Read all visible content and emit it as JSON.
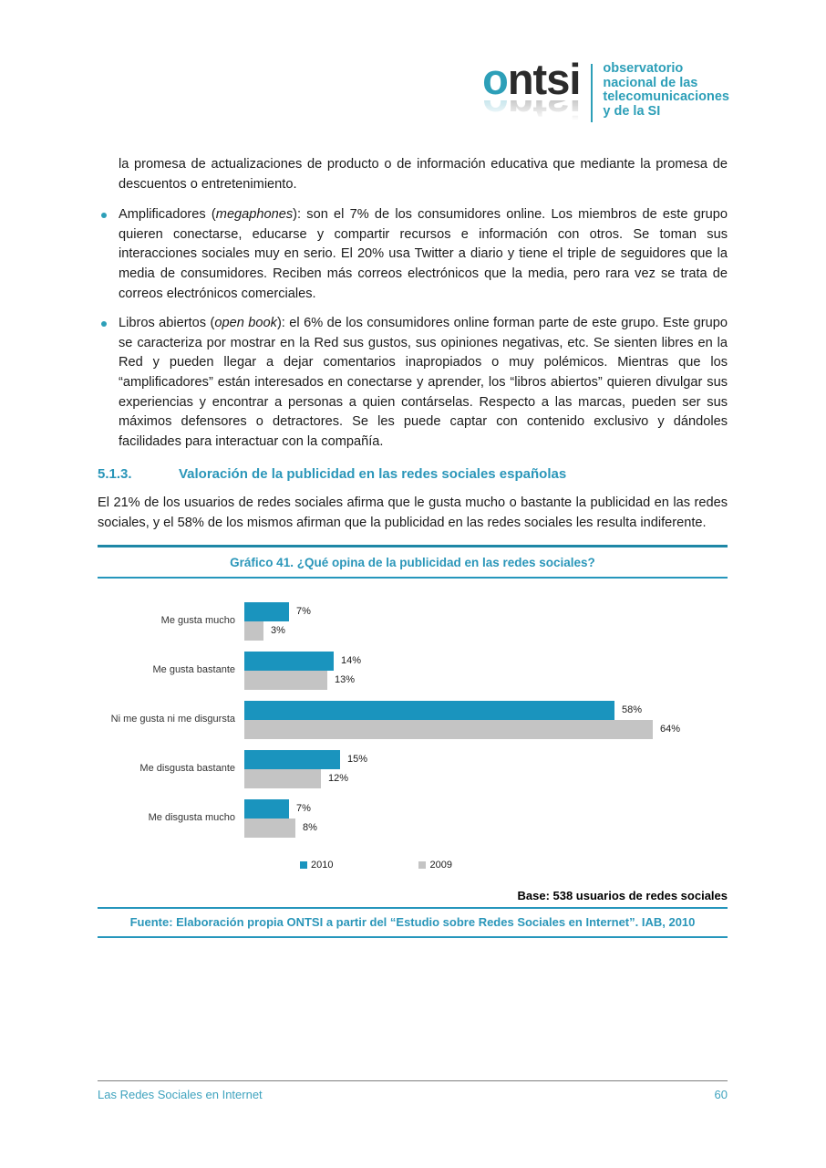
{
  "logo": {
    "word_o": "o",
    "word_rest": "ntsi",
    "tagline_lines": [
      "observatorio",
      "nacional de las",
      "telecomunicaciones",
      "y de la SI"
    ],
    "teal": "#2d9fb8"
  },
  "content": {
    "intro_paragraph": "la promesa de actualizaciones de producto o de información educativa que mediante la promesa de descuentos o entretenimiento.",
    "bullets": [
      {
        "prefix": "Amplificadores (",
        "italic": "megaphones",
        "suffix": "): son el 7% de los consumidores online. Los miembros de este grupo quieren conectarse, educarse y compartir recursos e información con otros. Se toman sus interacciones sociales muy en serio. El 20% usa Twitter a diario y tiene el triple de seguidores que la media de consumidores. Reciben más correos electrónicos que la media, pero rara vez se trata de correos electrónicos comerciales."
      },
      {
        "prefix": "Libros abiertos (",
        "italic": "open book",
        "suffix": "): el 6% de los consumidores online forman parte de este grupo. Este grupo se caracteriza por mostrar en la Red sus gustos, sus opiniones negativas, etc. Se sienten libres en la Red y pueden llegar a dejar comentarios inapropiados o muy polémicos. Mientras que los “amplificadores” están interesados en conectarse y aprender, los “libros abiertos” quieren divulgar sus experiencias y encontrar a personas a quien contárselas. Respecto a las marcas, pueden ser sus máximos defensores o detractores. Se les puede captar con contenido exclusivo y dándoles facilidades para interactuar con la compañía."
      }
    ],
    "section_heading": {
      "number": "5.1.3.",
      "title": "Valoración de la publicidad en las redes sociales españolas"
    },
    "paragraph_2": "El 21% de los usuarios de redes sociales afirma que le gusta mucho o bastante la publicidad en las redes sociales, y el 58% de los mismos afirman que la publicidad en las redes sociales les resulta indiferente."
  },
  "chart_data": {
    "type": "bar",
    "orientation": "horizontal",
    "title": "Gráfico 41. ¿Qué opina de la publicidad en las redes sociales?",
    "categories": [
      "Me gusta mucho",
      "Me gusta bastante",
      "Ni me gusta ni me disgursta",
      "Me disgusta bastante",
      "Me disgusta mucho"
    ],
    "series": [
      {
        "name": "2010",
        "color": "#1a94be",
        "values": [
          7,
          14,
          58,
          15,
          7
        ]
      },
      {
        "name": "2009",
        "color": "#c4c4c4",
        "values": [
          3,
          13,
          64,
          12,
          8
        ]
      }
    ],
    "value_suffix": "%",
    "xlim": [
      0,
      70
    ],
    "grid": false,
    "legend_position": "bottom",
    "base_note": "Base: 538 usuarios de redes sociales",
    "source_note": "Fuente: Elaboración propia ONTSI a partir del “Estudio sobre Redes Sociales en Internet”. IAB, 2010"
  },
  "footer": {
    "left": "Las Redes Sociales en Internet",
    "page_number": "60"
  }
}
